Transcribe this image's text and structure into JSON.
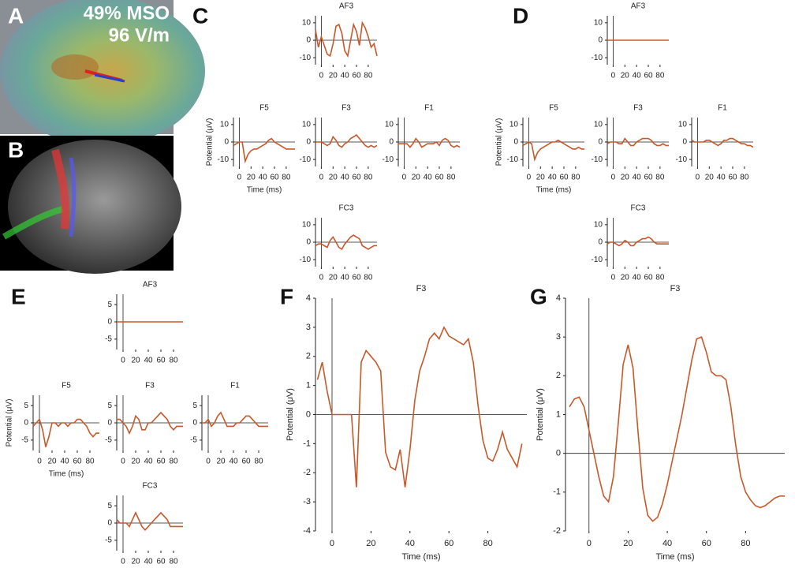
{
  "panel_labels": [
    "A",
    "B",
    "C",
    "D",
    "E",
    "F",
    "G"
  ],
  "panel_a_text": [
    "49% MSO",
    "96 V/m"
  ],
  "chart_data": [
    {
      "type": "line",
      "title": "AF3",
      "x": [
        -10,
        -5,
        0,
        5,
        10,
        15,
        20,
        25,
        30,
        35,
        40,
        45,
        50,
        55,
        60,
        65,
        70,
        75,
        80,
        85,
        90,
        95
      ],
      "series": [
        {
          "color": "#c8582a",
          "values": [
            6,
            -4,
            2,
            -3,
            -8,
            -9,
            -2,
            8,
            9,
            4,
            -6,
            -9,
            0,
            9,
            5,
            -3,
            10,
            7,
            2,
            -4,
            -2,
            -9
          ]
        }
      ],
      "xlim": [
        -10,
        95
      ],
      "ylim": [
        -14,
        14
      ],
      "xticks": [
        0,
        20,
        40,
        60,
        80
      ],
      "yticks": [
        -10,
        0,
        10
      ]
    },
    {
      "type": "line",
      "title": "F5",
      "xlabel": "Time (ms)",
      "ylabel": "Potential (μV)",
      "x": [
        -10,
        -5,
        0,
        5,
        10,
        15,
        20,
        25,
        30,
        35,
        40,
        45,
        50,
        55,
        60,
        65,
        70,
        75,
        80,
        85,
        90,
        95
      ],
      "series": [
        {
          "color": "#c8582a",
          "values": [
            -2,
            -1,
            0,
            0,
            -11,
            -7,
            -5,
            -4,
            -4,
            -3,
            -2,
            -1,
            1,
            2,
            0,
            -1,
            -2,
            -3,
            -4,
            -4,
            -4,
            -4
          ]
        }
      ],
      "xlim": [
        -10,
        95
      ],
      "ylim": [
        -14,
        14
      ],
      "xticks": [
        0,
        20,
        40,
        60,
        80
      ],
      "yticks": [
        -10,
        0,
        10
      ]
    },
    {
      "type": "line",
      "title": "F3",
      "x": [
        -10,
        -5,
        0,
        5,
        10,
        15,
        20,
        25,
        30,
        35,
        40,
        45,
        50,
        55,
        60,
        65,
        70,
        75,
        80,
        85,
        90,
        95
      ],
      "series": [
        {
          "color": "#c8582a",
          "values": [
            0,
            0,
            0,
            -1,
            -2,
            -1,
            3,
            1,
            -2,
            -3,
            -1,
            0,
            2,
            3,
            4,
            2,
            0,
            -2,
            -3,
            -2,
            -3,
            -2
          ]
        }
      ],
      "xlim": [
        -10,
        95
      ],
      "ylim": [
        -14,
        14
      ],
      "xticks": [
        0,
        20,
        40,
        60,
        80
      ],
      "yticks": [
        -10,
        0,
        10
      ]
    },
    {
      "type": "line",
      "title": "F1",
      "x": [
        -10,
        -5,
        0,
        5,
        10,
        15,
        20,
        25,
        30,
        35,
        40,
        45,
        50,
        55,
        60,
        65,
        70,
        75,
        80,
        85,
        90,
        95
      ],
      "series": [
        {
          "color": "#c8582a",
          "values": [
            -1,
            -1,
            -1,
            -1,
            -3,
            -1,
            2,
            0,
            -3,
            -2,
            -1,
            -1,
            -1,
            0,
            -2,
            1,
            2,
            1,
            -2,
            -3,
            -2,
            -3
          ]
        }
      ],
      "xlim": [
        -10,
        95
      ],
      "ylim": [
        -14,
        14
      ],
      "xticks": [
        0,
        20,
        40,
        60,
        80
      ],
      "yticks": [
        -10,
        0,
        10
      ]
    },
    {
      "type": "line",
      "title": "FC3",
      "x": [
        -10,
        -5,
        0,
        5,
        10,
        15,
        20,
        25,
        30,
        35,
        40,
        45,
        50,
        55,
        60,
        65,
        70,
        75,
        80,
        85,
        90,
        95
      ],
      "series": [
        {
          "color": "#c8582a",
          "values": [
            -2,
            -1,
            -1,
            -2,
            -3,
            1,
            3,
            0,
            -3,
            -4,
            -1,
            1,
            3,
            4,
            3,
            2,
            -2,
            -3,
            -4,
            -3,
            -2,
            -2
          ]
        }
      ],
      "xlim": [
        -10,
        95
      ],
      "ylim": [
        -14,
        14
      ],
      "xticks": [
        0,
        20,
        40,
        60,
        80
      ],
      "yticks": [
        -10,
        0,
        10
      ]
    },
    {
      "type": "line",
      "title": "AF3",
      "x": [
        -10,
        -5,
        0,
        5,
        10,
        15,
        20,
        25,
        30,
        35,
        40,
        45,
        50,
        55,
        60,
        65,
        70,
        75,
        80,
        85,
        90,
        95
      ],
      "series": [
        {
          "color": "#c8582a",
          "values": [
            0,
            0,
            0,
            0,
            0,
            0,
            0,
            0,
            0,
            0,
            0,
            0,
            0,
            0,
            0,
            0,
            0,
            0,
            0,
            0,
            0,
            0
          ]
        }
      ],
      "xlim": [
        -10,
        95
      ],
      "ylim": [
        -14,
        14
      ],
      "xticks": [
        0,
        20,
        40,
        60,
        80
      ],
      "yticks": [
        -10,
        0,
        10
      ]
    },
    {
      "type": "line",
      "title": "F5",
      "xlabel": "Time (ms)",
      "ylabel": "Potential (μV)",
      "x": [
        -10,
        -5,
        0,
        5,
        10,
        15,
        20,
        25,
        30,
        35,
        40,
        45,
        50,
        55,
        60,
        65,
        70,
        75,
        80,
        85,
        90,
        95
      ],
      "series": [
        {
          "color": "#c8582a",
          "values": [
            -2,
            -1,
            0,
            -1,
            -10,
            -6,
            -4,
            -3,
            -2,
            -1,
            0,
            0,
            1,
            0,
            -1,
            -2,
            -3,
            -4,
            -4,
            -3,
            -4,
            -4
          ]
        }
      ],
      "xlim": [
        -10,
        95
      ],
      "ylim": [
        -14,
        14
      ],
      "xticks": [
        0,
        20,
        40,
        60,
        80
      ],
      "yticks": [
        -10,
        0,
        10
      ]
    },
    {
      "type": "line",
      "title": "F3",
      "x": [
        -10,
        -5,
        0,
        5,
        10,
        15,
        20,
        25,
        30,
        35,
        40,
        45,
        50,
        55,
        60,
        65,
        70,
        75,
        80,
        85,
        90,
        95
      ],
      "series": [
        {
          "color": "#c8582a",
          "values": [
            -1,
            0,
            0,
            0,
            -1,
            -1,
            2,
            0,
            -2,
            -2,
            0,
            1,
            2,
            2,
            2,
            1,
            -1,
            -2,
            -2,
            -1,
            -2,
            -2
          ]
        }
      ],
      "xlim": [
        -10,
        95
      ],
      "ylim": [
        -14,
        14
      ],
      "xticks": [
        0,
        20,
        40,
        60,
        80
      ],
      "yticks": [
        -10,
        0,
        10
      ]
    },
    {
      "type": "line",
      "title": "F1",
      "x": [
        -10,
        -5,
        0,
        5,
        10,
        15,
        20,
        25,
        30,
        35,
        40,
        45,
        50,
        55,
        60,
        65,
        70,
        75,
        80,
        85,
        90,
        95
      ],
      "series": [
        {
          "color": "#c8582a",
          "values": [
            1,
            0,
            0,
            0,
            0,
            1,
            1,
            0,
            -1,
            -2,
            -1,
            1,
            1,
            2,
            2,
            1,
            0,
            -1,
            -1,
            -2,
            -2,
            -3
          ]
        }
      ],
      "xlim": [
        -10,
        95
      ],
      "ylim": [
        -14,
        14
      ],
      "xticks": [
        0,
        20,
        40,
        60,
        80
      ],
      "yticks": [
        -10,
        0,
        10
      ]
    },
    {
      "type": "line",
      "title": "FC3",
      "x": [
        -10,
        -5,
        0,
        5,
        10,
        15,
        20,
        25,
        30,
        35,
        40,
        45,
        50,
        55,
        60,
        65,
        70,
        75,
        80,
        85,
        90,
        95
      ],
      "series": [
        {
          "color": "#c8582a",
          "values": [
            -1,
            0,
            0,
            -1,
            -2,
            -1,
            1,
            0,
            -2,
            -2,
            0,
            1,
            2,
            2,
            3,
            2,
            0,
            -1,
            -1,
            -1,
            -1,
            -1
          ]
        }
      ],
      "xlim": [
        -10,
        95
      ],
      "ylim": [
        -14,
        14
      ],
      "xticks": [
        0,
        20,
        40,
        60,
        80
      ],
      "yticks": [
        -10,
        0,
        10
      ]
    },
    {
      "type": "line",
      "title": "AF3",
      "x": [
        -10,
        -5,
        0,
        5,
        10,
        15,
        20,
        25,
        30,
        35,
        40,
        45,
        50,
        55,
        60,
        65,
        70,
        75,
        80,
        85,
        90,
        95
      ],
      "series": [
        {
          "color": "#c8582a",
          "values": [
            0,
            0,
            0,
            0,
            0,
            0,
            0,
            0,
            0,
            0,
            0,
            0,
            0,
            0,
            0,
            0,
            0,
            0,
            0,
            0,
            0,
            0
          ]
        }
      ],
      "xlim": [
        -10,
        95
      ],
      "ylim": [
        -8,
        8
      ],
      "xticks": [
        0,
        20,
        40,
        60,
        80
      ],
      "yticks": [
        -5,
        0,
        5
      ]
    },
    {
      "type": "line",
      "title": "F5",
      "xlabel": "Time (ms)",
      "ylabel": "Potential (μV)",
      "x": [
        -10,
        -5,
        0,
        5,
        10,
        15,
        20,
        25,
        30,
        35,
        40,
        45,
        50,
        55,
        60,
        65,
        70,
        75,
        80,
        85,
        90,
        95
      ],
      "series": [
        {
          "color": "#c8582a",
          "values": [
            -1,
            0,
            1,
            -2,
            -7,
            -4,
            0,
            0,
            -1,
            0,
            0,
            -1,
            0,
            0,
            1,
            1,
            0,
            -1,
            -3,
            -4,
            -3,
            -3
          ]
        }
      ],
      "xlim": [
        -10,
        95
      ],
      "ylim": [
        -8,
        8
      ],
      "xticks": [
        0,
        20,
        40,
        60,
        80
      ],
      "yticks": [
        -5,
        0,
        5
      ]
    },
    {
      "type": "line",
      "title": "F3",
      "x": [
        -10,
        -5,
        0,
        5,
        10,
        15,
        20,
        25,
        30,
        35,
        40,
        45,
        50,
        55,
        60,
        65,
        70,
        75,
        80,
        85,
        90,
        95
      ],
      "series": [
        {
          "color": "#c8582a",
          "values": [
            1,
            1,
            0,
            -1,
            -3,
            -1,
            2,
            1,
            -2,
            -2,
            0,
            0,
            1,
            2,
            3,
            2,
            1,
            -1,
            -2,
            -1,
            -1,
            -1
          ]
        }
      ],
      "xlim": [
        -10,
        95
      ],
      "ylim": [
        -8,
        8
      ],
      "xticks": [
        0,
        20,
        40,
        60,
        80
      ],
      "yticks": [
        -5,
        0,
        5
      ]
    },
    {
      "type": "line",
      "title": "F1",
      "x": [
        -10,
        -5,
        0,
        5,
        10,
        15,
        20,
        25,
        30,
        35,
        40,
        45,
        50,
        55,
        60,
        65,
        70,
        75,
        80,
        85,
        90,
        95
      ],
      "series": [
        {
          "color": "#c8582a",
          "values": [
            0,
            0,
            1,
            -1,
            0,
            2,
            3,
            1,
            -1,
            -1,
            -1,
            0,
            0,
            1,
            2,
            2,
            1,
            0,
            -1,
            -1,
            -1,
            -1
          ]
        }
      ],
      "xlim": [
        -10,
        95
      ],
      "ylim": [
        -8,
        8
      ],
      "xticks": [
        0,
        20,
        40,
        60,
        80
      ],
      "yticks": [
        -5,
        0,
        5
      ]
    },
    {
      "type": "line",
      "title": "FC3",
      "x": [
        -10,
        -5,
        0,
        5,
        10,
        15,
        20,
        25,
        30,
        35,
        40,
        45,
        50,
        55,
        60,
        65,
        70,
        75,
        80,
        85,
        90,
        95
      ],
      "series": [
        {
          "color": "#c8582a",
          "values": [
            1,
            0,
            0,
            0,
            -1,
            1,
            3,
            1,
            -1,
            -2,
            -1,
            0,
            1,
            2,
            3,
            2,
            1,
            -1,
            -1,
            -1,
            -1,
            -1
          ]
        }
      ],
      "xlim": [
        -10,
        95
      ],
      "ylim": [
        -8,
        8
      ],
      "xticks": [
        0,
        20,
        40,
        60,
        80
      ],
      "yticks": [
        -5,
        0,
        5
      ]
    },
    {
      "type": "line",
      "title": "F3",
      "xlabel": "Time (ms)",
      "ylabel": "Potential (μV)",
      "x": [
        -7.5,
        -5,
        -2.5,
        0,
        2.5,
        5,
        7.5,
        10,
        12.5,
        15,
        17.5,
        20,
        22.5,
        25,
        27.5,
        30,
        32.5,
        35,
        37.5,
        40,
        42.5,
        45,
        47.5,
        50,
        52.5,
        55,
        57.5,
        60,
        62.5,
        65,
        67.5,
        70,
        72.5,
        75,
        77.5,
        80,
        82.5,
        85,
        87.5,
        90,
        92.5,
        95,
        97.5
      ],
      "series": [
        {
          "color": "#c8582a",
          "values": [
            1.2,
            1.8,
            0.8,
            0,
            0,
            0,
            0,
            0,
            -2.5,
            1.8,
            2.2,
            2,
            1.8,
            1.5,
            -1.3,
            -1.8,
            -1.9,
            -1.2,
            -2.5,
            -1.2,
            0.5,
            1.5,
            2,
            2.6,
            2.8,
            2.6,
            3,
            2.7,
            2.6,
            2.5,
            2.4,
            2.6,
            1.8,
            0.3,
            -0.9,
            -1.5,
            -1.6,
            -1.2,
            -0.6,
            -1.2,
            -1.5,
            -1.8,
            -1
          ]
        }
      ],
      "xlim": [
        -8.5,
        100
      ],
      "ylim": [
        -4,
        4
      ],
      "xticks": [
        0,
        20,
        40,
        60,
        80
      ],
      "yticks": [
        -4,
        -3,
        -2,
        -1,
        0,
        1,
        2,
        3,
        4
      ]
    },
    {
      "type": "line",
      "title": "F3",
      "xlabel": "Time (ms)",
      "ylabel": "Potential (μV)",
      "x": [
        -10,
        -7.5,
        -5,
        -2.5,
        0,
        2.5,
        5,
        7.5,
        10,
        12.5,
        15,
        17.5,
        20,
        22.5,
        25,
        27.5,
        30,
        32.5,
        35,
        37.5,
        40,
        42.5,
        45,
        47.5,
        50,
        52.5,
        55,
        57.5,
        60,
        62.5,
        65,
        67.5,
        70,
        72.5,
        75,
        77.5,
        80,
        82.5,
        85,
        87.5,
        90,
        92.5,
        95,
        97.5,
        100
      ],
      "series": [
        {
          "color": "#c8582a",
          "values": [
            1.2,
            1.4,
            1.45,
            1.2,
            0.6,
            0,
            -0.6,
            -1.1,
            -1.25,
            -0.6,
            0.8,
            2.3,
            2.8,
            2.2,
            0.6,
            -0.9,
            -1.6,
            -1.75,
            -1.65,
            -1.3,
            -0.8,
            -0.2,
            0.4,
            1,
            1.7,
            2.4,
            2.95,
            3,
            2.6,
            2.1,
            2,
            2,
            1.9,
            1.2,
            0.2,
            -0.6,
            -1,
            -1.2,
            -1.35,
            -1.4,
            -1.35,
            -1.25,
            -1.15,
            -1.1,
            -1.1
          ]
        }
      ],
      "xlim": [
        -12,
        100
      ],
      "ylim": [
        -2,
        4
      ],
      "xticks": [
        0,
        20,
        40,
        60,
        80
      ],
      "yticks": [
        -2,
        -1,
        0,
        1,
        2,
        3,
        4
      ]
    }
  ]
}
